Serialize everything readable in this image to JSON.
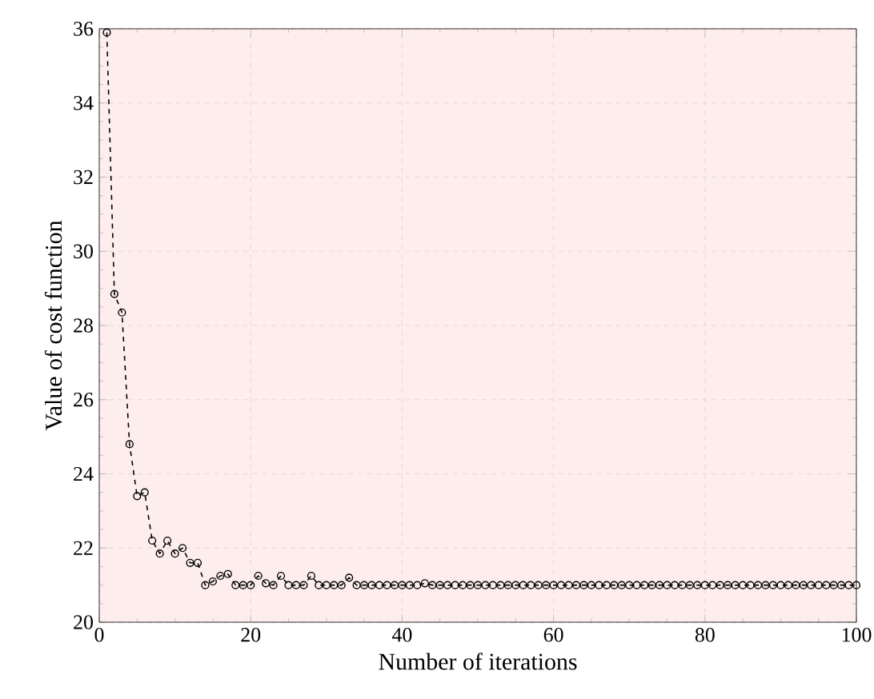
{
  "chart_data": {
    "type": "line",
    "xlabel": "Number of iterations",
    "ylabel": "Value of cost function",
    "x": [
      1,
      2,
      3,
      4,
      5,
      6,
      7,
      8,
      9,
      10,
      11,
      12,
      13,
      14,
      15,
      16,
      17,
      18,
      19,
      20,
      21,
      22,
      23,
      24,
      25,
      26,
      27,
      28,
      29,
      30,
      31,
      32,
      33,
      34,
      35,
      36,
      37,
      38,
      39,
      40,
      41,
      42,
      43,
      44,
      45,
      46,
      47,
      48,
      49,
      50,
      51,
      52,
      53,
      54,
      55,
      56,
      57,
      58,
      59,
      60,
      61,
      62,
      63,
      64,
      65,
      66,
      67,
      68,
      69,
      70,
      71,
      72,
      73,
      74,
      75,
      76,
      77,
      78,
      79,
      80,
      81,
      82,
      83,
      84,
      85,
      86,
      87,
      88,
      89,
      90,
      91,
      92,
      93,
      94,
      95,
      96,
      97,
      98,
      99,
      100
    ],
    "series": [
      {
        "color": "#000000",
        "values": [
          35.9,
          28.85,
          28.35,
          24.8,
          23.4,
          23.5,
          22.2,
          21.85,
          22.2,
          21.85,
          22.0,
          21.6,
          21.6,
          21.0,
          21.1,
          21.25,
          21.3,
          21.0,
          21.0,
          21.0,
          21.25,
          21.05,
          21.0,
          21.25,
          21.0,
          21.0,
          21.0,
          21.25,
          21.0,
          21.0,
          21.0,
          21.0,
          21.2,
          21.0,
          21.0,
          21.0,
          21.0,
          21.0,
          21.0,
          21.0,
          21.0,
          21.0,
          21.05,
          21.0,
          21.0,
          21.0,
          21.0,
          21.0,
          21.0,
          21.0,
          21.0,
          21.0,
          21.0,
          21.0,
          21.0,
          21.0,
          21.0,
          21.0,
          21.0,
          21.0,
          21.0,
          21.0,
          21.0,
          21.0,
          21.0,
          21.0,
          21.0,
          21.0,
          21.0,
          21.0,
          21.0,
          21.0,
          21.0,
          21.0,
          21.0,
          21.0,
          21.0,
          21.0,
          21.0,
          21.0,
          21.0,
          21.0,
          21.0,
          21.0,
          21.0,
          21.0,
          21.0,
          21.0,
          21.0,
          21.0,
          21.0,
          21.0,
          21.0,
          21.0,
          21.0,
          21.0,
          21.0,
          21.0,
          21.0,
          21.0
        ]
      }
    ],
    "xlim": [
      0,
      100
    ],
    "ylim": [
      20,
      36
    ],
    "xticks": [
      0,
      20,
      40,
      60,
      80,
      100
    ],
    "yticks": [
      20,
      22,
      24,
      26,
      28,
      30,
      32,
      34,
      36
    ],
    "grid": true,
    "marker": "circle",
    "line_style": "dashed"
  }
}
